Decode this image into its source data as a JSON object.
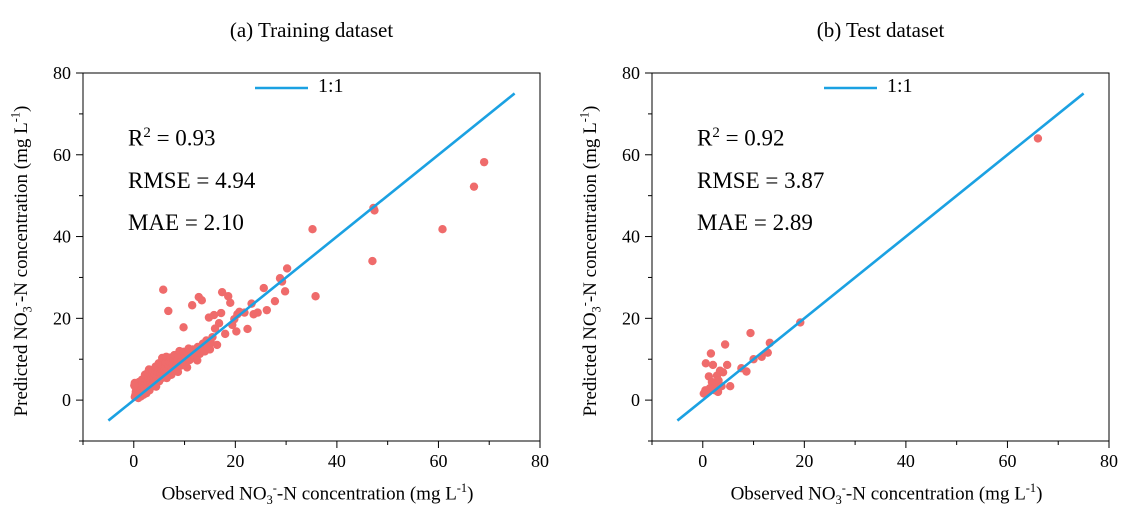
{
  "chart_data": [
    {
      "type": "scatter",
      "title": "(a) Training dataset",
      "ylabel": {
        "pre": "Predicted NO",
        "sub": "3",
        "sup": "-",
        "post": "-N concentration (mg L",
        "sup2": "-1",
        "end": ")"
      },
      "xlabel": {
        "pre": "Observed NO",
        "sub": "3",
        "sup": "-",
        "post": "-N concentration (mg L",
        "sup2": "-1",
        "end": ")"
      },
      "xlim": [
        -10,
        80
      ],
      "ylim": [
        -10,
        80
      ],
      "xticks": [
        "0",
        "20",
        "40",
        "60",
        "80"
      ],
      "yticks": [
        "0",
        "20",
        "40",
        "60",
        "80"
      ],
      "stats": {
        "r2_label": "R",
        "r2_sup": "2",
        "r2_value": " = 0.93",
        "rmse": "RMSE = 4.94",
        "mae": "MAE = 2.10"
      },
      "legend": {
        "label": "1:1",
        "position": "top"
      },
      "reference_line": {
        "from": [
          -5,
          -5
        ],
        "to": [
          75,
          75
        ],
        "color": "#1ba1e2"
      },
      "point_color": "#ef6b6b",
      "points": [
        [
          0.2,
          0.8
        ],
        [
          0.3,
          1.2
        ],
        [
          0.5,
          1.5
        ],
        [
          0.4,
          2.0
        ],
        [
          0.6,
          2.6
        ],
        [
          0.3,
          3.2
        ],
        [
          0.2,
          4.2
        ],
        [
          0.8,
          3.8
        ],
        [
          0.7,
          1.1
        ],
        [
          1.0,
          1.6
        ],
        [
          1.1,
          2.5
        ],
        [
          1.2,
          3.0
        ],
        [
          1.3,
          3.6
        ],
        [
          1.0,
          4.4
        ],
        [
          1.5,
          2.1
        ],
        [
          1.6,
          2.8
        ],
        [
          1.7,
          3.4
        ],
        [
          1.8,
          4.0
        ],
        [
          1.6,
          5.0
        ],
        [
          2.0,
          1.9
        ],
        [
          2.1,
          2.6
        ],
        [
          2.2,
          3.3
        ],
        [
          2.3,
          4.1
        ],
        [
          2.4,
          5.0
        ],
        [
          2.2,
          6.2
        ],
        [
          2.6,
          2.9
        ],
        [
          2.7,
          3.6
        ],
        [
          2.8,
          4.5
        ],
        [
          2.9,
          5.4
        ],
        [
          2.8,
          6.8
        ],
        [
          3.0,
          7.5
        ],
        [
          3.2,
          3.5
        ],
        [
          3.3,
          4.2
        ],
        [
          3.4,
          5.0
        ],
        [
          3.5,
          5.9
        ],
        [
          3.6,
          6.6
        ],
        [
          3.7,
          7.2
        ],
        [
          3.8,
          3.9
        ],
        [
          3.9,
          4.8
        ],
        [
          4.0,
          5.6
        ],
        [
          4.1,
          6.5
        ],
        [
          4.2,
          7.4
        ],
        [
          4.3,
          8.2
        ],
        [
          4.5,
          5.0
        ],
        [
          4.6,
          5.9
        ],
        [
          4.7,
          6.8
        ],
        [
          4.8,
          7.7
        ],
        [
          4.9,
          9.0
        ],
        [
          5.0,
          4.6
        ],
        [
          5.2,
          5.8
        ],
        [
          5.3,
          6.7
        ],
        [
          5.4,
          7.6
        ],
        [
          5.5,
          8.6
        ],
        [
          5.6,
          10.3
        ],
        [
          5.8,
          5.5
        ],
        [
          6.0,
          6.4
        ],
        [
          6.1,
          7.3
        ],
        [
          6.2,
          8.2
        ],
        [
          6.3,
          9.2
        ],
        [
          6.4,
          10.6
        ],
        [
          6.6,
          6.6
        ],
        [
          6.8,
          7.5
        ],
        [
          6.9,
          8.5
        ],
        [
          7.0,
          9.4
        ],
        [
          7.2,
          10.4
        ],
        [
          7.4,
          6.2
        ],
        [
          7.5,
          7.8
        ],
        [
          7.7,
          8.9
        ],
        [
          7.9,
          9.9
        ],
        [
          8.0,
          11.0
        ],
        [
          8.2,
          7.6
        ],
        [
          8.4,
          8.6
        ],
        [
          8.6,
          9.7
        ],
        [
          8.8,
          10.8
        ],
        [
          9.0,
          12.0
        ],
        [
          9.2,
          8.4
        ],
        [
          9.4,
          9.5
        ],
        [
          9.6,
          10.6
        ],
        [
          9.8,
          11.8
        ],
        [
          10.0,
          9.2
        ],
        [
          10.3,
          10.4
        ],
        [
          10.6,
          11.6
        ],
        [
          10.8,
          12.6
        ],
        [
          11.0,
          9.8
        ],
        [
          11.3,
          11.1
        ],
        [
          11.6,
          12.4
        ],
        [
          12.0,
          10.5
        ],
        [
          12.3,
          11.8
        ],
        [
          12.6,
          13.0
        ],
        [
          13.0,
          11.3
        ],
        [
          13.3,
          12.5
        ],
        [
          13.6,
          13.8
        ],
        [
          14.0,
          11.9
        ],
        [
          14.3,
          14.6
        ],
        [
          14.6,
          13.1
        ],
        [
          15.0,
          12.4
        ],
        [
          15.2,
          14.0
        ],
        [
          15.5,
          15.4
        ],
        [
          16.0,
          17.5
        ],
        [
          16.4,
          13.5
        ],
        [
          5.8,
          27.0
        ],
        [
          6.8,
          21.8
        ],
        [
          9.8,
          17.8
        ],
        [
          11.5,
          23.2
        ],
        [
          12.8,
          25.2
        ],
        [
          13.4,
          24.4
        ],
        [
          14.8,
          20.2
        ],
        [
          15.8,
          20.8
        ],
        [
          16.8,
          18.8
        ],
        [
          17.2,
          21.3
        ],
        [
          17.4,
          26.4
        ],
        [
          18.0,
          16.2
        ],
        [
          18.6,
          25.4
        ],
        [
          19.0,
          23.8
        ],
        [
          19.4,
          18.4
        ],
        [
          19.8,
          19.8
        ],
        [
          20.2,
          16.8
        ],
        [
          20.4,
          21.0
        ],
        [
          20.8,
          21.6
        ],
        [
          21.8,
          21.4
        ],
        [
          22.4,
          17.4
        ],
        [
          23.2,
          23.6
        ],
        [
          23.6,
          21.0
        ],
        [
          24.4,
          21.4
        ],
        [
          25.6,
          27.4
        ],
        [
          26.2,
          22.0
        ],
        [
          27.8,
          24.2
        ],
        [
          28.8,
          29.8
        ],
        [
          29.2,
          29.0
        ],
        [
          29.8,
          26.6
        ],
        [
          30.2,
          32.2
        ],
        [
          35.2,
          41.8
        ],
        [
          35.8,
          25.4
        ],
        [
          47.2,
          47.0
        ],
        [
          47.4,
          46.4
        ],
        [
          47.0,
          34.0
        ],
        [
          60.8,
          41.8
        ],
        [
          67.0,
          52.2
        ],
        [
          69.0,
          58.2
        ],
        [
          1.4,
          0.9
        ],
        [
          0.1,
          3.6
        ],
        [
          2.5,
          1.7
        ],
        [
          3.1,
          2.4
        ],
        [
          4.4,
          3.3
        ],
        [
          0.9,
          0.5
        ],
        [
          1.9,
          1.3
        ],
        [
          6.5,
          5.4
        ],
        [
          8.7,
          6.9
        ],
        [
          10.5,
          8.0
        ],
        [
          12.5,
          9.7
        ]
      ]
    },
    {
      "type": "scatter",
      "title": "(b) Test dataset",
      "ylabel": {
        "pre": "Predicted NO",
        "sub": "3",
        "sup": "-",
        "post": "-N concentration (mg L",
        "sup2": "-1",
        "end": ")"
      },
      "xlabel": {
        "pre": "Observed NO",
        "sub": "3",
        "sup": "-",
        "post": "-N concentration (mg L",
        "sup2": "-1",
        "end": ")"
      },
      "xlim": [
        -10,
        80
      ],
      "ylim": [
        -10,
        80
      ],
      "xticks": [
        "0",
        "20",
        "40",
        "60",
        "80"
      ],
      "yticks": [
        "0",
        "20",
        "40",
        "60",
        "80"
      ],
      "stats": {
        "r2_label": "R",
        "r2_sup": "2",
        "r2_value": " = 0.92",
        "rmse": "RMSE = 3.87",
        "mae": "MAE = 2.89"
      },
      "legend": {
        "label": "1:1",
        "position": "top"
      },
      "reference_line": {
        "from": [
          -5,
          -5
        ],
        "to": [
          75,
          75
        ],
        "color": "#1ba1e2"
      },
      "point_color": "#ef6b6b",
      "points": [
        [
          0.2,
          1.6
        ],
        [
          0.5,
          2.4
        ],
        [
          0.8,
          1.9
        ],
        [
          0.6,
          9.0
        ],
        [
          1.2,
          5.8
        ],
        [
          1.6,
          11.4
        ],
        [
          1.8,
          4.4
        ],
        [
          2.0,
          8.6
        ],
        [
          2.4,
          2.4
        ],
        [
          2.6,
          3.6
        ],
        [
          2.8,
          6.0
        ],
        [
          3.1,
          4.8
        ],
        [
          3.4,
          7.2
        ],
        [
          3.7,
          3.4
        ],
        [
          4.0,
          6.8
        ],
        [
          4.4,
          13.6
        ],
        [
          4.8,
          8.6
        ],
        [
          5.4,
          3.4
        ],
        [
          7.6,
          7.8
        ],
        [
          8.6,
          7.0
        ],
        [
          9.4,
          16.4
        ],
        [
          10.0,
          10.0
        ],
        [
          11.6,
          10.6
        ],
        [
          12.8,
          11.6
        ],
        [
          13.2,
          14.0
        ],
        [
          19.2,
          19.0
        ],
        [
          66.0,
          64.0
        ],
        [
          1.4,
          2.9
        ],
        [
          3.0,
          2.0
        ]
      ]
    }
  ]
}
